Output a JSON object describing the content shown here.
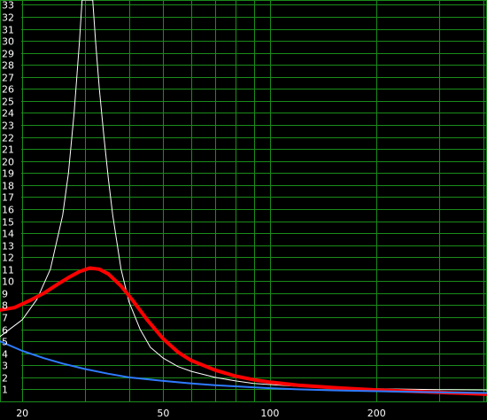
{
  "chart_data": {
    "type": "line",
    "title": "",
    "xlabel": "",
    "ylabel": "",
    "x_scale": "log",
    "xlim": [
      17.3,
      410
    ],
    "ylim": [
      0,
      33.4
    ],
    "grid": true,
    "x_tick_labels": [
      {
        "value": 20,
        "label": "20"
      },
      {
        "value": 50,
        "label": "50"
      },
      {
        "value": 100,
        "label": "100"
      },
      {
        "value": 200,
        "label": "200"
      }
    ],
    "x_gridlines": [
      20,
      30,
      40,
      50,
      60,
      70,
      80,
      90,
      100,
      200,
      300,
      400
    ],
    "y_ticks": [
      1,
      2,
      3,
      4,
      5,
      6,
      7,
      8,
      9,
      10,
      11,
      12,
      13,
      14,
      15,
      16,
      17,
      18,
      19,
      20,
      21,
      22,
      23,
      24,
      25,
      26,
      27,
      28,
      29,
      30,
      31,
      32,
      33
    ],
    "colors": {
      "background": "#000000",
      "grid": "#1a8c1a",
      "tick_labels": "#ffffff"
    },
    "series": [
      {
        "color": "#ffffff",
        "stroke_width": 1,
        "points": [
          [
            17.3,
            5.4
          ],
          [
            20,
            6.8
          ],
          [
            22,
            8.5
          ],
          [
            24,
            11
          ],
          [
            26,
            15.5
          ],
          [
            27,
            19
          ],
          [
            28,
            24
          ],
          [
            29,
            30
          ],
          [
            29.5,
            33.4
          ],
          [
            31.6,
            33.4
          ],
          [
            32.2,
            30
          ],
          [
            33,
            26
          ],
          [
            34,
            22
          ],
          [
            35,
            18.5
          ],
          [
            36,
            15.5
          ],
          [
            38,
            11
          ],
          [
            40,
            8.3
          ],
          [
            43,
            6
          ],
          [
            46,
            4.5
          ],
          [
            50,
            3.6
          ],
          [
            55,
            2.9
          ],
          [
            60,
            2.5
          ],
          [
            70,
            2.0
          ],
          [
            80,
            1.7
          ],
          [
            90,
            1.5
          ],
          [
            100,
            1.4
          ],
          [
            120,
            1.25
          ],
          [
            150,
            1.15
          ],
          [
            200,
            1.05
          ],
          [
            300,
            0.98
          ],
          [
            410,
            0.95
          ]
        ]
      },
      {
        "color": "#ff0000",
        "stroke_width": 4,
        "points": [
          [
            17.3,
            7.6
          ],
          [
            19,
            7.8
          ],
          [
            21,
            8.4
          ],
          [
            23,
            9.0
          ],
          [
            25,
            9.7
          ],
          [
            27,
            10.3
          ],
          [
            29,
            10.8
          ],
          [
            31,
            11.1
          ],
          [
            33,
            11.0
          ],
          [
            35,
            10.6
          ],
          [
            38,
            9.6
          ],
          [
            41,
            8.4
          ],
          [
            45,
            6.8
          ],
          [
            50,
            5.2
          ],
          [
            55,
            4.1
          ],
          [
            60,
            3.4
          ],
          [
            70,
            2.6
          ],
          [
            80,
            2.1
          ],
          [
            90,
            1.8
          ],
          [
            100,
            1.6
          ],
          [
            120,
            1.35
          ],
          [
            150,
            1.15
          ],
          [
            200,
            0.95
          ],
          [
            300,
            0.75
          ],
          [
            410,
            0.6
          ]
        ]
      },
      {
        "color": "#2e7bff",
        "stroke_width": 2,
        "points": [
          [
            17.3,
            5.0
          ],
          [
            20,
            4.2
          ],
          [
            23,
            3.6
          ],
          [
            26,
            3.15
          ],
          [
            30,
            2.7
          ],
          [
            35,
            2.3
          ],
          [
            40,
            2.0
          ],
          [
            50,
            1.7
          ],
          [
            60,
            1.5
          ],
          [
            70,
            1.35
          ],
          [
            80,
            1.25
          ],
          [
            100,
            1.1
          ],
          [
            120,
            1.0
          ],
          [
            150,
            0.92
          ],
          [
            200,
            0.85
          ],
          [
            300,
            0.75
          ],
          [
            410,
            0.7
          ]
        ]
      }
    ]
  }
}
